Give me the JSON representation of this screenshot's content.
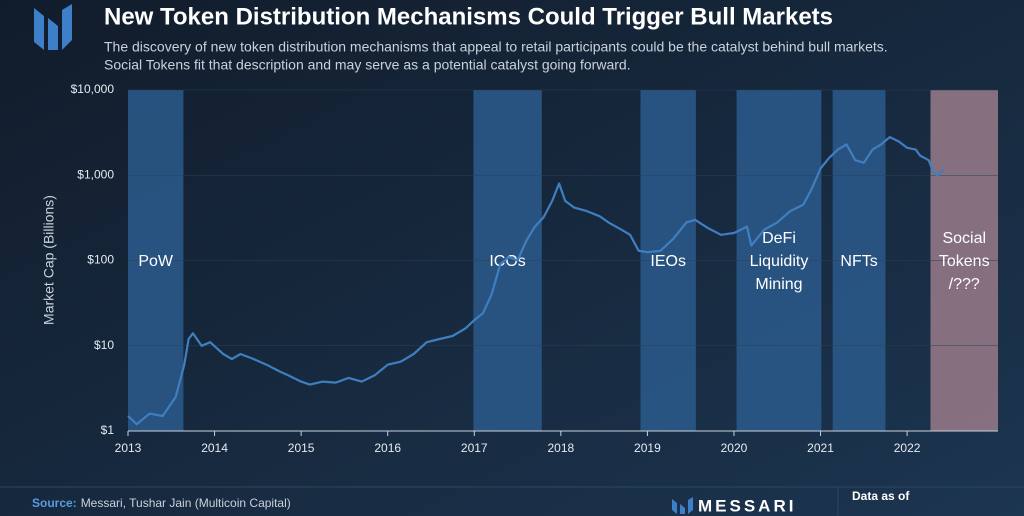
{
  "chart_data": {
    "type": "line",
    "title": "New Token Distribution Mechanisms Could Trigger Bull Markets",
    "subtitle": [
      "The discovery of new token distribution mechanisms that appeal to retail participants could be the catalyst behind bull markets.",
      "Social Tokens fit that description and may serve as a potential catalyst going forward."
    ],
    "y_label": "Market Cap (Billions)",
    "log_y": true,
    "color": "#3f7fc0",
    "xlim": [
      2013,
      2023.05
    ],
    "xticks": [
      2013,
      2014,
      2015,
      2016,
      2017,
      2018,
      2019,
      2020,
      2021,
      2022
    ],
    "ylim": [
      1,
      10000
    ],
    "yticks": [
      {
        "value": 1,
        "label": "$1"
      },
      {
        "value": 10,
        "label": "$10"
      },
      {
        "value": 100,
        "label": "$100"
      },
      {
        "value": 1000,
        "label": "$1,000"
      },
      {
        "value": 10000,
        "label": "$10,000"
      }
    ],
    "x": [
      2013.0,
      2013.1,
      2013.25,
      2013.4,
      2013.55,
      2013.65,
      2013.7,
      2013.75,
      2013.85,
      2013.95,
      2014.1,
      2014.2,
      2014.3,
      2014.45,
      2014.6,
      2014.75,
      2014.85,
      2015.0,
      2015.1,
      2015.25,
      2015.4,
      2015.55,
      2015.7,
      2015.85,
      2016.0,
      2016.15,
      2016.3,
      2016.45,
      2016.6,
      2016.75,
      2016.9,
      2017.0,
      2017.1,
      2017.2,
      2017.3,
      2017.4,
      2017.5,
      2017.6,
      2017.7,
      2017.8,
      2017.9,
      2017.98,
      2018.05,
      2018.15,
      2018.3,
      2018.45,
      2018.55,
      2018.7,
      2018.8,
      2018.9,
      2019.0,
      2019.15,
      2019.3,
      2019.45,
      2019.55,
      2019.7,
      2019.85,
      2020.0,
      2020.15,
      2020.2,
      2020.35,
      2020.5,
      2020.65,
      2020.8,
      2020.9,
      2021.0,
      2021.1,
      2021.2,
      2021.3,
      2021.4,
      2021.5,
      2021.6,
      2021.7,
      2021.8,
      2021.9,
      2022.0,
      2022.1,
      2022.15,
      2022.25,
      2022.3,
      2022.35,
      2022.42
    ],
    "values": [
      1.5,
      1.2,
      1.6,
      1.5,
      2.5,
      6,
      12,
      14,
      10,
      11,
      8,
      7,
      8,
      7,
      6,
      5,
      4.5,
      3.8,
      3.5,
      3.8,
      3.7,
      4.2,
      3.8,
      4.5,
      6,
      6.5,
      8,
      11,
      12,
      13,
      16,
      20,
      24,
      40,
      90,
      110,
      100,
      170,
      250,
      320,
      500,
      800,
      500,
      420,
      380,
      330,
      280,
      230,
      200,
      130,
      125,
      130,
      180,
      280,
      300,
      240,
      200,
      210,
      250,
      150,
      230,
      280,
      380,
      450,
      700,
      1200,
      1600,
      2000,
      2300,
      1500,
      1400,
      2000,
      2300,
      2800,
      2500,
      2100,
      2000,
      1700,
      1500,
      1100,
      1000,
      1150
    ],
    "bands": [
      {
        "label": [
          "PoW"
        ],
        "start": 2013,
        "end": 2013.64,
        "color": "#2b5a8c"
      },
      {
        "label": [
          "ICOs"
        ],
        "start": 2016.99,
        "end": 2017.78,
        "color": "#2b5a8c"
      },
      {
        "label": [
          "IEOs"
        ],
        "start": 2018.92,
        "end": 2019.56,
        "color": "#2b5a8c"
      },
      {
        "label": [
          "DeFi",
          "Liquidity",
          "Mining"
        ],
        "start": 2020.03,
        "end": 2021.01,
        "color": "#2b5a8c"
      },
      {
        "label": [
          "NFTs"
        ],
        "start": 2021.14,
        "end": 2021.75,
        "color": "#2b5a8c"
      },
      {
        "label": [
          "Social",
          "Tokens",
          "/???"
        ],
        "start": 2022.27,
        "end": 2023.05,
        "color": "#9a7b89"
      }
    ],
    "source_label": "Source:",
    "source": "Messari, Tushar Jain (Multicoin Capital)",
    "logo": "MESSARI",
    "date_label": "Data as of"
  }
}
